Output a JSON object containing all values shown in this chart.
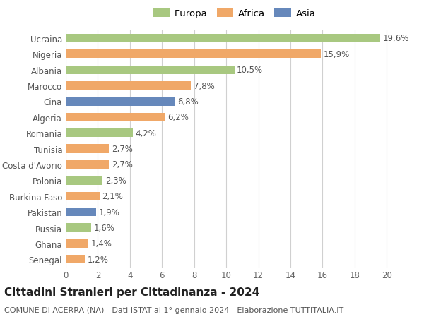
{
  "categories": [
    "Senegal",
    "Ghana",
    "Russia",
    "Pakistan",
    "Burkina Faso",
    "Polonia",
    "Costa d'Avorio",
    "Tunisia",
    "Romania",
    "Algeria",
    "Cina",
    "Marocco",
    "Albania",
    "Nigeria",
    "Ucraina"
  ],
  "values": [
    1.2,
    1.4,
    1.6,
    1.9,
    2.1,
    2.3,
    2.7,
    2.7,
    4.2,
    6.2,
    6.8,
    7.8,
    10.5,
    15.9,
    19.6
  ],
  "colors": [
    "#f0a868",
    "#f0a868",
    "#a8c880",
    "#6688bb",
    "#f0a868",
    "#a8c880",
    "#f0a868",
    "#f0a868",
    "#a8c880",
    "#f0a868",
    "#6688bb",
    "#f0a868",
    "#a8c880",
    "#f0a868",
    "#a8c880"
  ],
  "legend": [
    {
      "label": "Europa",
      "color": "#a8c880"
    },
    {
      "label": "Africa",
      "color": "#f0a868"
    },
    {
      "label": "Asia",
      "color": "#6688bb"
    }
  ],
  "title": "Cittadini Stranieri per Cittadinanza - 2024",
  "subtitle": "COMUNE DI ACERRA (NA) - Dati ISTAT al 1° gennaio 2024 - Elaborazione TUTTITALIA.IT",
  "xlim": [
    0,
    21
  ],
  "xticks": [
    0,
    2,
    4,
    6,
    8,
    10,
    12,
    14,
    16,
    18,
    20
  ],
  "background_color": "#ffffff",
  "grid_color": "#d0d0d0",
  "bar_height": 0.55,
  "label_fontsize": 8.5,
  "ytick_fontsize": 8.5,
  "xtick_fontsize": 8.5,
  "title_fontsize": 11,
  "subtitle_fontsize": 8,
  "legend_fontsize": 9.5
}
